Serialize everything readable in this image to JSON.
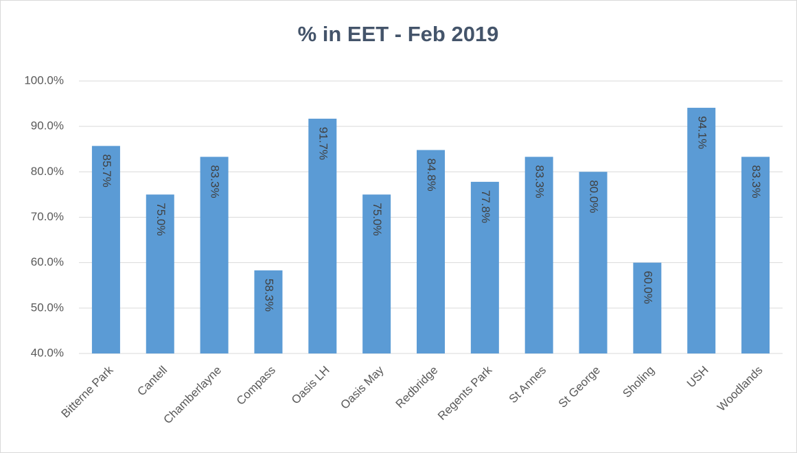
{
  "chart_data": {
    "type": "bar",
    "title": "% in EET - Feb 2019",
    "categories": [
      "Bitterne Park",
      "Cantell",
      "Chamberlayne",
      "Compass",
      "Oasis LH",
      "Oasis May",
      "Redbridge",
      "Regents Park",
      "St Annes",
      "St George",
      "Sholing",
      "USH",
      "Woodlands"
    ],
    "values": [
      85.7,
      75.0,
      83.3,
      58.3,
      91.7,
      75.0,
      84.8,
      77.8,
      83.3,
      80.0,
      60.0,
      94.1,
      83.3
    ],
    "value_labels": [
      "85.7%",
      "75.0%",
      "83.3%",
      "58.3%",
      "91.7%",
      "75.0%",
      "84.8%",
      "77.8%",
      "83.3%",
      "80.0%",
      "60.0%",
      "94.1%",
      "83.3%"
    ],
    "color": "#5b9bd5",
    "ylim": [
      40,
      100
    ],
    "yticks": [
      {
        "value": 40,
        "label": "40.0%"
      },
      {
        "value": 50,
        "label": "50.0%"
      },
      {
        "value": 60,
        "label": "60.0%"
      },
      {
        "value": 70,
        "label": "70.0%"
      },
      {
        "value": 80,
        "label": "80.0%"
      },
      {
        "value": 90,
        "label": "90.0%"
      },
      {
        "value": 100,
        "label": "100.0%"
      }
    ],
    "grid": true
  }
}
